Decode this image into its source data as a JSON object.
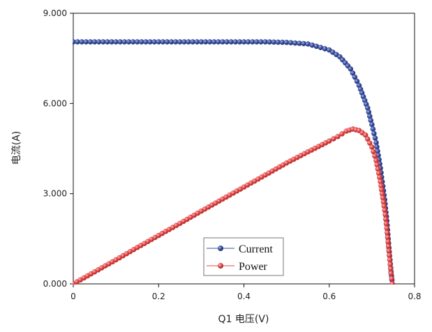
{
  "chart_data": {
    "type": "scatter",
    "title": "",
    "xlabel": "Q1 电压(V)",
    "ylabel": "电流(A)",
    "xlim": [
      0,
      0.8
    ],
    "ylim": [
      0,
      9
    ],
    "x_ticks": [
      "0",
      "0.2",
      "0.4",
      "0.6",
      "0.8"
    ],
    "x_tick_values": [
      0,
      0.2,
      0.4,
      0.6,
      0.8
    ],
    "y_ticks": [
      "0.000",
      "3.000",
      "6.000",
      "9.000"
    ],
    "y_tick_values": [
      0,
      3,
      6,
      9
    ],
    "grid": false,
    "legend_position": "bottom-center",
    "series": [
      {
        "name": "Current",
        "color": "#3a4f9c",
        "marker": "circle",
        "points": [
          [
            0,
            8.05
          ],
          [
            0.05,
            8.05
          ],
          [
            0.1,
            8.05
          ],
          [
            0.15,
            8.05
          ],
          [
            0.2,
            8.05
          ],
          [
            0.25,
            8.05
          ],
          [
            0.3,
            8.05
          ],
          [
            0.35,
            8.05
          ],
          [
            0.4,
            8.05
          ],
          [
            0.45,
            8.05
          ],
          [
            0.5,
            8.03
          ],
          [
            0.55,
            7.98
          ],
          [
            0.6,
            7.78
          ],
          [
            0.625,
            7.55
          ],
          [
            0.65,
            7.15
          ],
          [
            0.67,
            6.6
          ],
          [
            0.69,
            5.85
          ],
          [
            0.7,
            5.3
          ],
          [
            0.71,
            4.7
          ],
          [
            0.72,
            3.85
          ],
          [
            0.73,
            2.8
          ],
          [
            0.735,
            2.1
          ],
          [
            0.74,
            1.2
          ],
          [
            0.745,
            0.4
          ],
          [
            0.748,
            0.0
          ]
        ]
      },
      {
        "name": "Power",
        "color": "#e04848",
        "marker": "circle",
        "points": [
          [
            0,
            0.0
          ],
          [
            0.05,
            0.4
          ],
          [
            0.1,
            0.8
          ],
          [
            0.15,
            1.21
          ],
          [
            0.2,
            1.61
          ],
          [
            0.25,
            2.01
          ],
          [
            0.3,
            2.42
          ],
          [
            0.35,
            2.82
          ],
          [
            0.4,
            3.22
          ],
          [
            0.45,
            3.62
          ],
          [
            0.5,
            4.02
          ],
          [
            0.55,
            4.39
          ],
          [
            0.6,
            4.75
          ],
          [
            0.62,
            4.9
          ],
          [
            0.64,
            5.08
          ],
          [
            0.655,
            5.15
          ],
          [
            0.67,
            5.1
          ],
          [
            0.685,
            4.95
          ],
          [
            0.7,
            4.55
          ],
          [
            0.71,
            4.1
          ],
          [
            0.72,
            3.4
          ],
          [
            0.73,
            2.45
          ],
          [
            0.735,
            1.85
          ],
          [
            0.74,
            1.1
          ],
          [
            0.745,
            0.35
          ],
          [
            0.748,
            0.0
          ]
        ]
      }
    ]
  }
}
